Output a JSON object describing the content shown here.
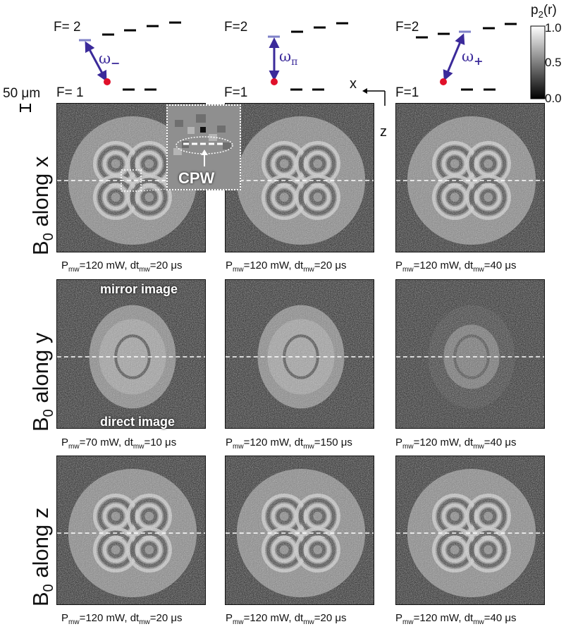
{
  "levels": {
    "upper_label": "F=2",
    "lower_label": "F=1",
    "upper_label_left": "F= 2",
    "lower_label_left": "F= 1",
    "transitions": [
      {
        "base": "ω",
        "sub": "−"
      },
      {
        "base": "ω",
        "sub": "π"
      },
      {
        "base": "ω",
        "sub": "+"
      }
    ]
  },
  "scalebar": {
    "label": "50 μm"
  },
  "axes": {
    "x": "x",
    "z": "z"
  },
  "colorbar": {
    "title": "p",
    "title_sub": "2",
    "title_suffix": "(r)",
    "ticks": [
      "1.0",
      "0.5",
      "0.0"
    ]
  },
  "inset": {
    "label": "CPW"
  },
  "rows": [
    {
      "label": "B",
      "label_sub": "0",
      "label_rest": " along x",
      "captions": [
        {
          "p": "120 mW",
          "dt": "20 μs"
        },
        {
          "p": "120 mW",
          "dt": "20 μs"
        },
        {
          "p": "120 mW",
          "dt": "40 μs"
        }
      ]
    },
    {
      "label": "B",
      "label_sub": "0",
      "label_rest": " along y",
      "mirror": "mirror image",
      "direct": "direct image",
      "captions": [
        {
          "p": "70 mW",
          "dt": "10 μs"
        },
        {
          "p": "120 mW",
          "dt": "150 μs"
        },
        {
          "p": "120 mW",
          "dt": "40 μs"
        }
      ]
    },
    {
      "label": "B",
      "label_sub": "0",
      "label_rest": " along z",
      "captions": [
        {
          "p": "120 mW",
          "dt": "20 μs"
        },
        {
          "p": "120 mW",
          "dt": "20 μs"
        },
        {
          "p": "120 mW",
          "dt": "40 μs"
        }
      ]
    }
  ],
  "caption_parts": {
    "p_prefix": "P",
    "p_sub": "mw",
    "dt_prefix": "dt",
    "dt_sub": "mw"
  }
}
